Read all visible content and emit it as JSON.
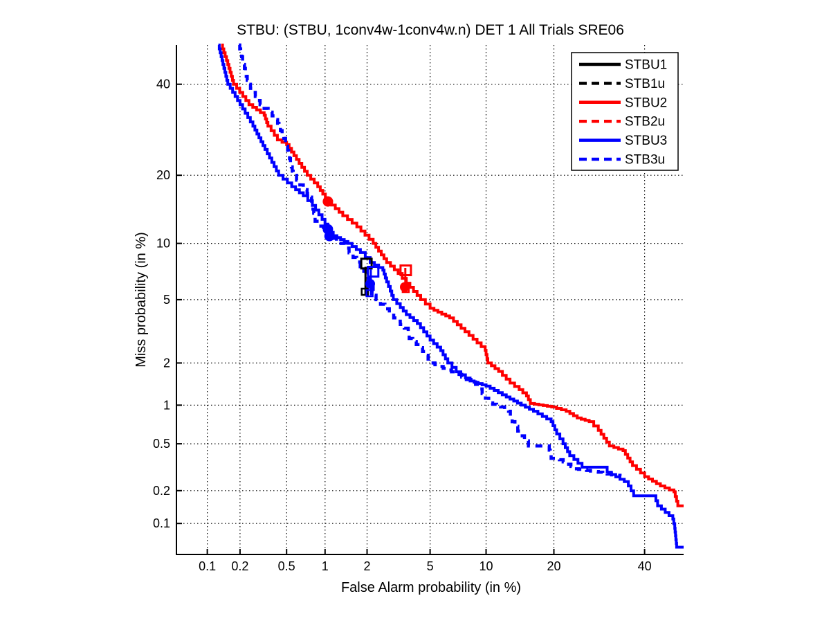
{
  "chart_data": {
    "type": "line",
    "subtype": "DET curve (probit / normal-deviate scale on both axes)",
    "title": "STBU: (STBU, 1conv4w-1conv4w.n) DET 1 All Trials SRE06",
    "xlabel": "False Alarm probability (in %)",
    "ylabel": "Miss probability (in %)",
    "xlim_pct": [
      0.05,
      50
    ],
    "ylim_pct": [
      0.05,
      50
    ],
    "grid": "dotted",
    "xticks": {
      "values": [
        0.1,
        0.2,
        0.5,
        1,
        2,
        5,
        10,
        20,
        40
      ],
      "labels": [
        "0.1",
        "0.2",
        "0.5",
        "1",
        "2",
        "5",
        "10",
        "20",
        "40"
      ]
    },
    "yticks": {
      "values": [
        0.1,
        0.2,
        0.5,
        1,
        2,
        5,
        10,
        20,
        40
      ],
      "labels": [
        "0.1",
        "0.2",
        "0.5",
        "1",
        "2",
        "5",
        "10",
        "20",
        "40"
      ]
    },
    "colors": {
      "black": "#000000",
      "red": "#ff0000",
      "blue": "#0000ff"
    },
    "legend": {
      "position": "northeast",
      "entries": [
        {
          "label": "STBU1",
          "color": "#000000",
          "dashed": false
        },
        {
          "label": "STB1u",
          "color": "#000000",
          "dashed": true
        },
        {
          "label": "STBU2",
          "color": "#ff0000",
          "dashed": false
        },
        {
          "label": "STB2u",
          "color": "#ff0000",
          "dashed": true
        },
        {
          "label": "STBU3",
          "color": "#0000ff",
          "dashed": false
        },
        {
          "label": "STB3u",
          "color": "#0000ff",
          "dashed": true
        }
      ]
    },
    "series": [
      {
        "name": "STBU1",
        "color": "#000000",
        "dashed": false,
        "points": []
      },
      {
        "name": "STB1u",
        "color": "#000000",
        "dashed": true,
        "points": []
      },
      {
        "name": "STBU2",
        "color": "#ff0000",
        "dashed": false,
        "points": [
          [
            0.135,
            50
          ],
          [
            0.155,
            45
          ],
          [
            0.175,
            40
          ],
          [
            0.24,
            35
          ],
          [
            0.325,
            32.5
          ],
          [
            0.35,
            30
          ],
          [
            0.42,
            27
          ],
          [
            0.5,
            26
          ],
          [
            0.6,
            23
          ],
          [
            0.73,
            20
          ],
          [
            0.88,
            18
          ],
          [
            1.05,
            15.6
          ],
          [
            1.35,
            13.5
          ],
          [
            1.7,
            12
          ],
          [
            2.2,
            10
          ],
          [
            2.7,
            8
          ],
          [
            3.2,
            7
          ],
          [
            3.6,
            6.2
          ],
          [
            4.4,
            5
          ],
          [
            5.0,
            4.45
          ],
          [
            6.45,
            3.9
          ],
          [
            7.8,
            3.2
          ],
          [
            9.9,
            2.43
          ],
          [
            10.2,
            2.0
          ],
          [
            11.5,
            1.75
          ],
          [
            13,
            1.45
          ],
          [
            14.3,
            1.3
          ],
          [
            15.4,
            1.17
          ],
          [
            16,
            1.03
          ],
          [
            19.6,
            0.97
          ],
          [
            22.3,
            0.9
          ],
          [
            24.5,
            0.8
          ],
          [
            27,
            0.75
          ],
          [
            29,
            0.64
          ],
          [
            31.5,
            0.48
          ],
          [
            34.7,
            0.44
          ],
          [
            37,
            0.33
          ],
          [
            40,
            0.265
          ],
          [
            44,
            0.22
          ],
          [
            47.5,
            0.195
          ],
          [
            48.5,
            0.146
          ],
          [
            50,
            0.146
          ]
        ]
      },
      {
        "name": "STB2u",
        "color": "#ff0000",
        "dashed": true,
        "points": []
      },
      {
        "name": "STBU3",
        "color": "#0000ff",
        "dashed": false,
        "points": [
          [
            0.127,
            50
          ],
          [
            0.14,
            45
          ],
          [
            0.155,
            40
          ],
          [
            0.2,
            35
          ],
          [
            0.26,
            30
          ],
          [
            0.33,
            25
          ],
          [
            0.43,
            20
          ],
          [
            0.55,
            18
          ],
          [
            0.68,
            16.5
          ],
          [
            0.8,
            15
          ],
          [
            0.95,
            13
          ],
          [
            1.05,
            11.75
          ],
          [
            1.15,
            10.9
          ],
          [
            1.47,
            10
          ],
          [
            1.8,
            9
          ],
          [
            2.1,
            8
          ],
          [
            2.55,
            7.3
          ],
          [
            2.7,
            6.3
          ],
          [
            2.85,
            5.6
          ],
          [
            2.98,
            5
          ],
          [
            3.3,
            4.5
          ],
          [
            3.6,
            4.08
          ],
          [
            4.2,
            3.6
          ],
          [
            5.0,
            2.83
          ],
          [
            5.75,
            2.42
          ],
          [
            6.3,
            2.0
          ],
          [
            7.0,
            1.74
          ],
          [
            8.3,
            1.5
          ],
          [
            10,
            1.38
          ],
          [
            12.5,
            1.15
          ],
          [
            14.6,
            1.0
          ],
          [
            16.5,
            0.9
          ],
          [
            19.5,
            0.75
          ],
          [
            20.5,
            0.6
          ],
          [
            21.7,
            0.5
          ],
          [
            23,
            0.4
          ],
          [
            25.5,
            0.32
          ],
          [
            30.5,
            0.32
          ],
          [
            31,
            0.29
          ],
          [
            35,
            0.24
          ],
          [
            36,
            0.22
          ],
          [
            37.3,
            0.18
          ],
          [
            42.4,
            0.18
          ],
          [
            43.3,
            0.146
          ],
          [
            47.2,
            0.11
          ],
          [
            47.7,
            0.09
          ],
          [
            48.2,
            0.059
          ],
          [
            50,
            0.059
          ]
        ]
      },
      {
        "name": "STB3u",
        "color": "#0000ff",
        "dashed": true,
        "points": [
          [
            0.195,
            50
          ],
          [
            0.215,
            45
          ],
          [
            0.236,
            40
          ],
          [
            0.3,
            35
          ],
          [
            0.41,
            31.5
          ],
          [
            0.445,
            29
          ],
          [
            0.49,
            26.5
          ],
          [
            0.52,
            24
          ],
          [
            0.565,
            20
          ],
          [
            0.68,
            17.5
          ],
          [
            0.78,
            16.3
          ],
          [
            0.84,
            12.75
          ],
          [
            1.045,
            10.9
          ],
          [
            1.31,
            10
          ],
          [
            1.6,
            8.5
          ],
          [
            1.9,
            7.2
          ],
          [
            2.1,
            6.3
          ],
          [
            2.3,
            5
          ],
          [
            3.0,
            3.9
          ],
          [
            3.3,
            3.55
          ],
          [
            3.7,
            3.2
          ],
          [
            3.75,
            2.9
          ],
          [
            4.35,
            2.53
          ],
          [
            5.05,
            2.0
          ],
          [
            6.6,
            1.74
          ],
          [
            7.5,
            1.6
          ],
          [
            8.85,
            1.42
          ],
          [
            10.3,
            1.04
          ],
          [
            11.75,
            0.97
          ],
          [
            12.8,
            0.9
          ],
          [
            13.3,
            0.75
          ],
          [
            14.5,
            0.58
          ],
          [
            15.7,
            0.48
          ],
          [
            19,
            0.48
          ],
          [
            19.5,
            0.38
          ],
          [
            21,
            0.37
          ],
          [
            24,
            0.31
          ],
          [
            29,
            0.29
          ],
          [
            32,
            0.275
          ],
          [
            34,
            0.27
          ]
        ]
      }
    ],
    "operating_points": [
      {
        "series": "STBU2",
        "shape": "filled-circle",
        "color": "#ff0000",
        "fa": 1.05,
        "miss": 15.6
      },
      {
        "series": "STBU3",
        "shape": "filled-circle",
        "color": "#0000ff",
        "fa": 1.05,
        "miss": 11.7
      },
      {
        "series": "STBU3",
        "shape": "filled-circle",
        "color": "#0000ff",
        "fa": 1.08,
        "miss": 10.85
      }
    ],
    "dcf_marker_clusters": [
      {
        "color": "#000000",
        "open_square": {
          "fa": 1.98,
          "miss": 7.9
        },
        "filled_circle": null,
        "small_square": {
          "fa": 1.93,
          "miss": 5.55
        },
        "bar": {
          "fa": 1.95,
          "miss_from": 7.6,
          "miss_to": 5.35
        }
      },
      {
        "color": "#0000ff",
        "open_square": {
          "fa": 2.2,
          "miss": 7.16
        },
        "filled_circle": {
          "fa": 2.1,
          "miss": 6.15
        },
        "small_square": {
          "fa": 2.08,
          "miss": 5.45
        },
        "bar": {
          "fa": 2.12,
          "miss_from": 7.4,
          "miss_to": 5.3
        }
      },
      {
        "color": "#ff0000",
        "open_square": {
          "fa": 3.57,
          "miss": 7.28
        },
        "filled_circle": {
          "fa": 3.52,
          "miss": 5.9
        },
        "small_square": {
          "fa": 3.57,
          "miss": 5.75
        },
        "bar": {
          "fa": 3.55,
          "miss_from": 7.5,
          "miss_to": 5.7
        }
      }
    ]
  }
}
